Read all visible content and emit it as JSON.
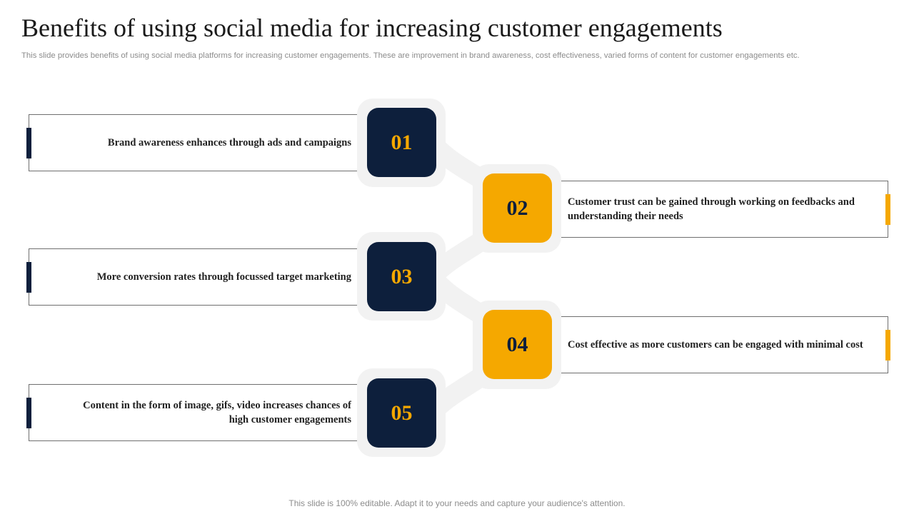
{
  "header": {
    "title": "Benefits of using social media for increasing customer engagements",
    "subtitle": "This slide provides benefits of using social media platforms for increasing customer engagements. These are improvement in brand awareness, cost effectiveness, varied forms of content for customer engagements etc."
  },
  "steps": [
    {
      "number": "01",
      "text": "Brand awareness enhances through ads and campaigns"
    },
    {
      "number": "02",
      "text": "Customer trust can be gained through working on feedbacks and understanding their needs"
    },
    {
      "number": "03",
      "text": "More conversion rates through focussed target marketing"
    },
    {
      "number": "04",
      "text": "Cost effective as more customers can be engaged with minimal cost"
    },
    {
      "number": "05",
      "text": "Content in the form of image, gifs, video increases chances of high customer engagements"
    }
  ],
  "footer": {
    "note": "This slide is 100% editable. Adapt it to your needs and capture your audience's attention."
  },
  "colors": {
    "dark": "#0d1f3c",
    "gold": "#f5a800",
    "tile": "#f2f2f2"
  }
}
